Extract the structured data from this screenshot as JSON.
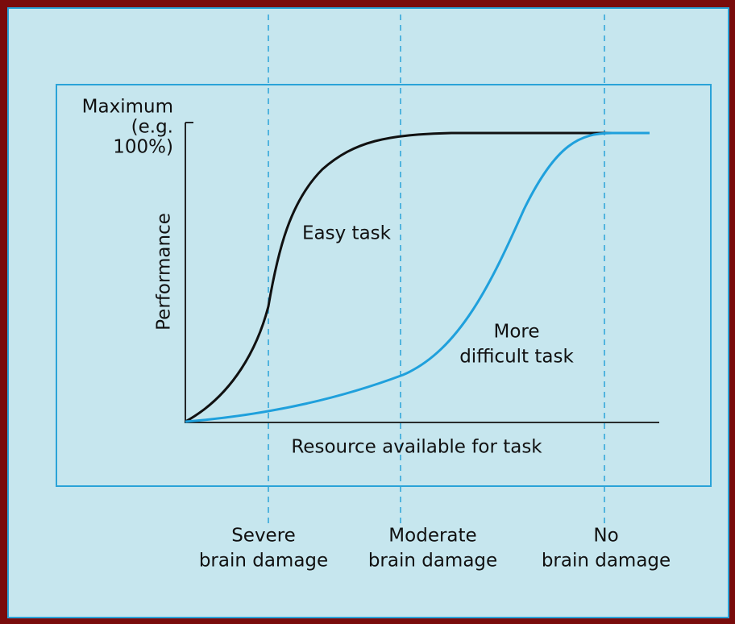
{
  "y_axis": {
    "top_label": [
      "Maximum",
      "(e.g.",
      "100%)"
    ],
    "title": "Performance"
  },
  "x_axis": {
    "title": "Resource available for task"
  },
  "curves": [
    {
      "label": [
        "Easy task"
      ]
    },
    {
      "label": [
        "More",
        "difficult task"
      ]
    }
  ],
  "levels": [
    {
      "label": [
        "Severe",
        "brain damage"
      ]
    },
    {
      "label": [
        "Moderate",
        "brain damage"
      ]
    },
    {
      "label": [
        "No",
        "brain damage"
      ]
    }
  ]
}
